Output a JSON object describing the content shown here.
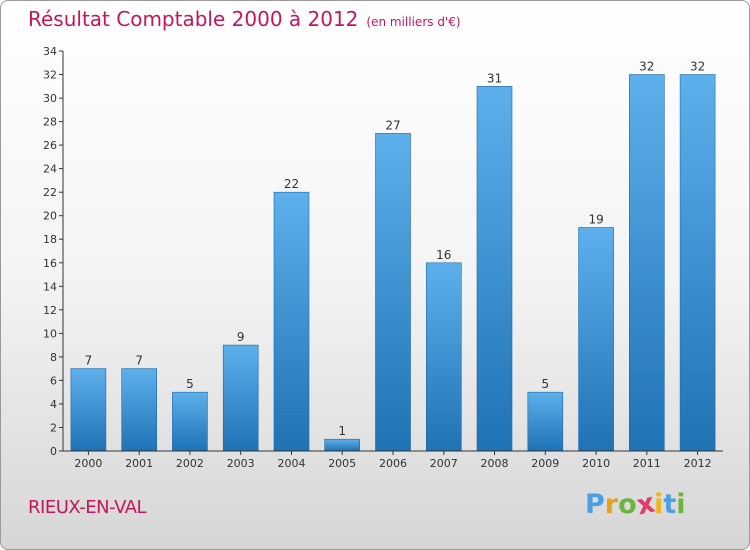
{
  "header": {
    "title": "Résultat Comptable 2000 à 2012",
    "subtitle": "(en milliers d'€)"
  },
  "location": "RIEUX-EN-VAL",
  "logo": {
    "letters": [
      "P",
      "r",
      "o",
      "x",
      "i",
      "t",
      "i"
    ],
    "colors": [
      "#4a9fe0",
      "#e8a020",
      "#6cb33f",
      "#e33a6b",
      "#f2b417",
      "#4a9fe0",
      "#6cb33f"
    ]
  },
  "colors": {
    "bar_top": "#5eb0ec",
    "bar_bottom": "#1f72b4",
    "title": "#c2185b"
  },
  "chart_data": {
    "type": "bar",
    "categories": [
      "2000",
      "2001",
      "2002",
      "2003",
      "2004",
      "2005",
      "2006",
      "2007",
      "2008",
      "2009",
      "2010",
      "2011",
      "2012"
    ],
    "values": [
      7,
      7,
      5,
      9,
      22,
      1,
      27,
      16,
      31,
      5,
      19,
      32,
      32
    ],
    "ylim": [
      0,
      34
    ],
    "yticks": [
      0,
      2,
      4,
      6,
      8,
      10,
      12,
      14,
      16,
      18,
      20,
      22,
      24,
      26,
      28,
      30,
      32,
      34
    ],
    "grid": false,
    "data_labels": true
  }
}
